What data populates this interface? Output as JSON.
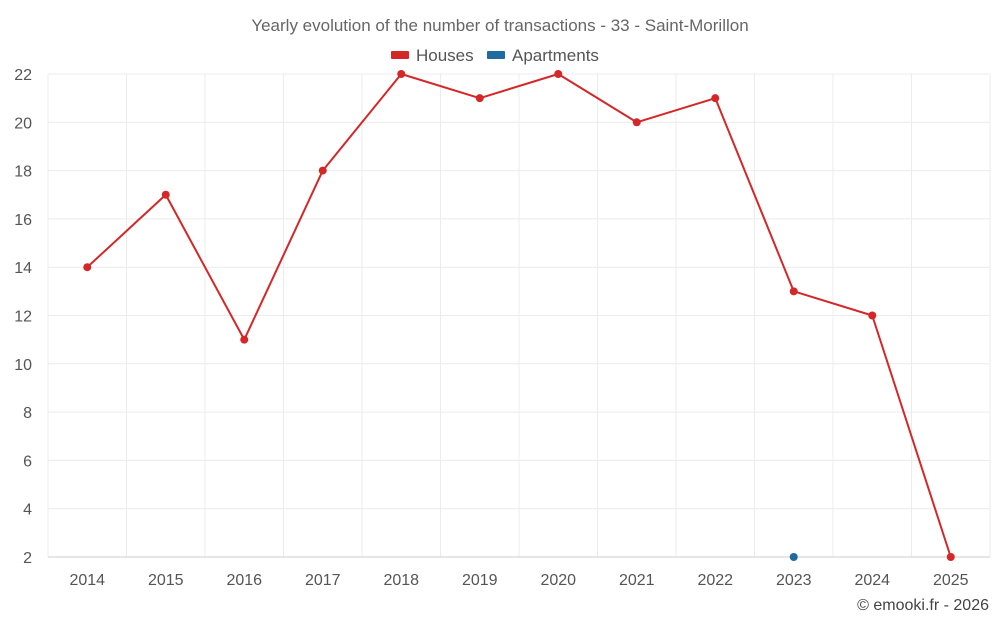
{
  "chart_data": {
    "type": "line",
    "title": "Yearly evolution of the number of transactions - 33 - Saint-Morillon",
    "xlabel": "",
    "ylabel": "",
    "categories": [
      "2014",
      "2015",
      "2016",
      "2017",
      "2018",
      "2019",
      "2020",
      "2021",
      "2022",
      "2023",
      "2024",
      "2025"
    ],
    "ylim": [
      2,
      22
    ],
    "yticks": [
      2,
      4,
      6,
      8,
      10,
      12,
      14,
      16,
      18,
      20,
      22
    ],
    "grid": true,
    "legend_position": "top-center",
    "series": [
      {
        "name": "Houses",
        "color": "#d62728",
        "values": [
          14,
          17,
          11,
          18,
          22,
          21,
          22,
          20,
          21,
          13,
          12,
          2
        ]
      },
      {
        "name": "Apartments",
        "color": "#1f6a9e",
        "values": [
          null,
          null,
          null,
          null,
          null,
          null,
          null,
          null,
          null,
          2,
          null,
          null
        ]
      }
    ]
  },
  "credit": "© emooki.fr - 2026"
}
